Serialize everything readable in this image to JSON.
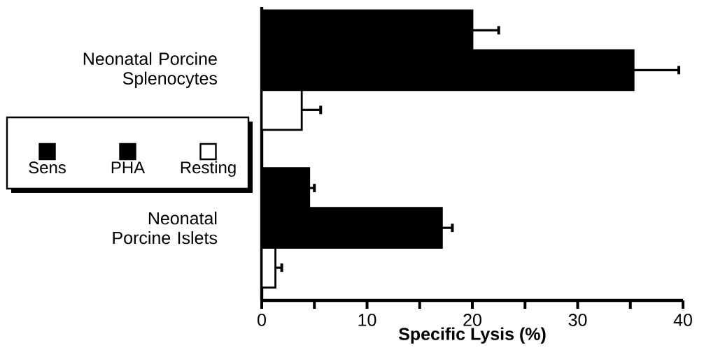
{
  "chart_data": {
    "type": "bar",
    "orientation": "horizontal",
    "xlabel": "Specific Lysis (%)",
    "categories": [
      "Neonatal Porcine Splenocytes",
      "Neonatal Porcine Islets"
    ],
    "series": [
      {
        "name": "Sens",
        "color": "#000000",
        "values": [
          20.0,
          4.5
        ],
        "errors": [
          2.5,
          0.5
        ]
      },
      {
        "name": "PHA",
        "color": "#000000",
        "values": [
          35.3,
          17.1
        ],
        "errors": [
          4.3,
          1.0
        ]
      },
      {
        "name": "Resting",
        "color": "#ffffff",
        "values": [
          3.8,
          1.3
        ],
        "errors": [
          1.8,
          0.6
        ]
      }
    ],
    "xlim": [
      0,
      40
    ],
    "xticks": [
      0,
      {
        "value": 5,
        "label": null
      },
      10,
      {
        "value": 15,
        "label": null
      },
      20,
      {
        "value": 25,
        "label": null
      },
      30,
      {
        "value": 35,
        "label": null
      },
      40
    ],
    "legend": "left",
    "grid": false
  }
}
